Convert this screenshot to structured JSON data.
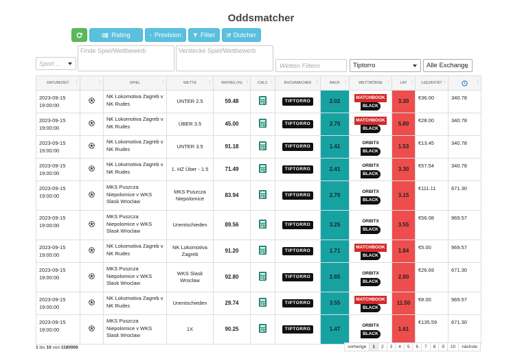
{
  "page_title": "Oddsmatcher",
  "toolbar": {
    "refresh_label": "",
    "rating_label": "Rating",
    "provision_label": "Provision",
    "filter_label": "Filter",
    "dutcher_label": "Dutcher"
  },
  "filters": {
    "sport_placeholder": "Sport ...",
    "find_game_placeholder": "Finde Spiel/Wettbewerb",
    "hide_game_placeholder": "Verstecke Spiel/Wettbewerb",
    "bets_placeholder": "Wetten Filtern",
    "bookmaker_value": "Tiptorro",
    "exchange_value": "Alle Exchange"
  },
  "columns": [
    "DATUM/ZEIT",
    "",
    "SPIEL",
    "WETTE",
    "RATING (%)",
    "CALC",
    "BUCHMACHER",
    "BACK",
    "WETTBÖRSE",
    "LAY",
    "LIQUIDITÄT",
    ""
  ],
  "rows": [
    {
      "date": "2023-09-15",
      "time": "19:00:00",
      "game": "NK Lokomotiva Zagreb v NK Rudes",
      "bet": "UNTER 2.5",
      "rating": "59.48",
      "bookmaker": "TIPTORRO",
      "back": "2.02",
      "exchange": "matchbook",
      "lay": "3.30",
      "liquidity": "€36.00",
      "last": "340.78"
    },
    {
      "date": "2023-09-15",
      "time": "19:00:00",
      "game": "NK Lokomotiva Zagreb v NK Rudes",
      "bet": "ÜBER 3.5",
      "rating": "45.00",
      "bookmaker": "TIPTORRO",
      "back": "2.70",
      "exchange": "matchbook",
      "lay": "5.80",
      "liquidity": "€28.00",
      "last": "340.78"
    },
    {
      "date": "2023-09-15",
      "time": "19:00:00",
      "game": "NK Lokomotiva Zagreb v NK Rudes",
      "bet": "UNTER 3.5",
      "rating": "91.18",
      "bookmaker": "TIPTORRO",
      "back": "1.41",
      "exchange": "orbitx",
      "lay": "1.53",
      "liquidity": "€13.45",
      "last": "340.78"
    },
    {
      "date": "2023-09-15",
      "time": "19:00:00",
      "game": "NK Lokomotiva Zagreb v NK Rudes",
      "bet": "1. HZ Über - 1.5",
      "rating": "71.49",
      "bookmaker": "TIPTORRO",
      "back": "2.41",
      "exchange": "orbitx",
      "lay": "3.30",
      "liquidity": "€57.54",
      "last": "340.78"
    },
    {
      "date": "2023-09-15",
      "time": "19:00:00",
      "game": "MKS Puszcza Niepolomice v WKS Slask Wroclaw",
      "bet": "MKS Puszcza Niepolomice",
      "rating": "83.94",
      "bookmaker": "TIPTORRO",
      "back": "2.70",
      "exchange": "orbitx",
      "lay": "3.15",
      "liquidity": "€111.11",
      "last": "671.30"
    },
    {
      "date": "2023-09-15",
      "time": "19:00:00",
      "game": "MKS Puszcza Niepolomice v WKS Slask Wroclaw",
      "bet": "Unentschieden",
      "rating": "89.56",
      "bookmaker": "TIPTORRO",
      "back": "3.25",
      "exchange": "orbitx",
      "lay": "3.55",
      "liquidity": "€56.08",
      "last": "969.57"
    },
    {
      "date": "2023-09-15",
      "time": "19:00:00",
      "game": "NK Lokomotiva Zagreb v NK Rudes",
      "bet": "NK Lokomotiva Zagreb",
      "rating": "91.20",
      "bookmaker": "TIPTORRO",
      "back": "1.71",
      "exchange": "matchbook",
      "lay": "1.84",
      "liquidity": "€5.00",
      "last": "969.57"
    },
    {
      "date": "2023-09-15",
      "time": "19:00:00",
      "game": "MKS Puszcza Niepolomice v WKS Slask Wroclaw",
      "bet": "WKS Slask Wroclaw",
      "rating": "92.80",
      "bookmaker": "TIPTORRO",
      "back": "2.65",
      "exchange": "orbitx",
      "lay": "2.80",
      "liquidity": "€26.69",
      "last": "671.30"
    },
    {
      "date": "2023-09-15",
      "time": "19:00:00",
      "game": "NK Lokomotiva Zagreb v NK Rudes",
      "bet": "Unentschieden",
      "rating": "29.74",
      "bookmaker": "TIPTORRO",
      "back": "3.55",
      "exchange": "matchbook",
      "lay": "11.50",
      "liquidity": "€8.00",
      "last": "969.57"
    },
    {
      "date": "2023-09-15",
      "time": "19:00:00",
      "game": "MKS Puszcza Niepolomice v WKS Slask Wroclaw",
      "bet": "1X",
      "rating": "90.25",
      "bookmaker": "TIPTORRO",
      "back": "1.47",
      "exchange": "orbitx",
      "lay": "1.61",
      "liquidity": "€135.59",
      "last": "671.30"
    }
  ],
  "logos": {
    "tiptorro": "TIPTORRO",
    "matchbook_1": "MATCHBOOK",
    "orbit_1": "ORBITX",
    "black_2": "BLACK"
  },
  "footer": {
    "info_pre": "1",
    "info_mid1": " bis ",
    "info_to": "10",
    "info_mid2": " von ",
    "info_total": "1180906"
  },
  "pagination": [
    "vorherige",
    "1",
    "2",
    "3",
    "4",
    "5",
    "6",
    "7",
    "8",
    "9",
    "10",
    "nächste"
  ],
  "colors": {
    "back": "#17a2a2",
    "lay": "#ee4d4d",
    "info_btn": "#5bc0de",
    "refresh_btn": "#5cb85c"
  }
}
